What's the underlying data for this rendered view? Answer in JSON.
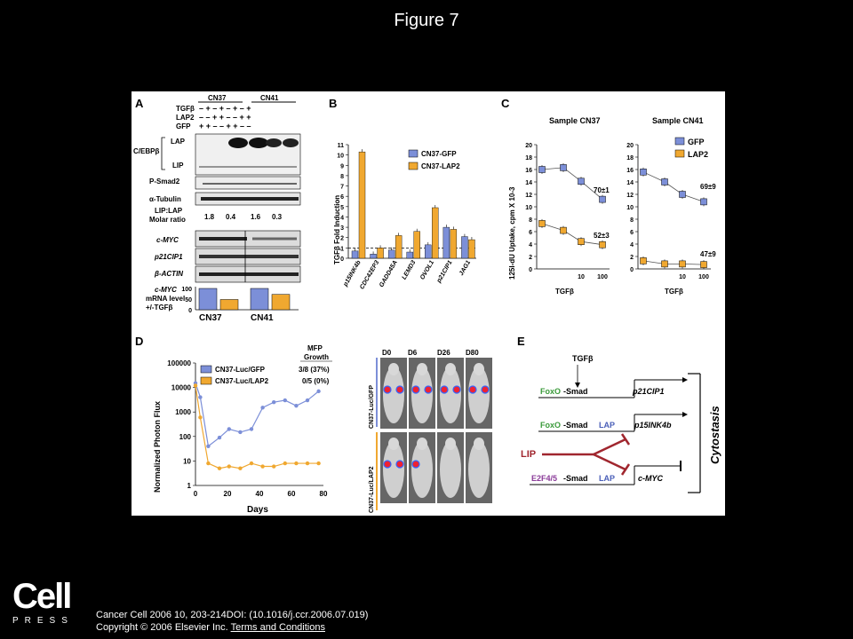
{
  "figure_title": "Figure 7",
  "panels": {
    "A": {
      "letter": "A",
      "groups": [
        "CN37",
        "CN41"
      ],
      "row_labels": [
        "TGFβ",
        "LAP2",
        "GFP"
      ],
      "tgf_signs": "– + – + – + – +",
      "lap2_signs": "– – + + – – + +",
      "gfp_signs": "+ + – – + + – –",
      "blot_labels": [
        "C/EBPβ",
        "LAP",
        "LIP",
        "P-Smad2",
        "α-Tubulin"
      ],
      "ratio_label_1": "LIP:LAP",
      "ratio_label_2": "Molar ratio",
      "ratios": [
        "1.8",
        "0.4",
        "1.6",
        "0.3"
      ],
      "rna_labels": [
        "c-MYC",
        "p21CIP1",
        "β-ACTIN"
      ],
      "bar_label_1": "c-MYC",
      "bar_label_2": "mRNA level",
      "bar_label_3": "+/-TGFβ",
      "bar_axis_ticks": [
        "100",
        "50",
        "0"
      ]
    },
    "B": {
      "letter": "B",
      "ylabel": "TGFβ Fold Induction",
      "legend": [
        "CN37-GFP",
        "CN37-LAP2"
      ]
    },
    "C": {
      "letter": "C",
      "ylabel": "125I-dU Uptake, cpm X 10-3",
      "left_title": "Sample CN37",
      "right_title": "Sample CN41",
      "xlabel": "TGFβ",
      "legend": [
        "GFP",
        "LAP2"
      ],
      "annotations": [
        "70±1",
        "52±3",
        "69±9",
        "47±9"
      ]
    },
    "D": {
      "letter": "D",
      "ylabel": "Normalized Photon Flux",
      "xlabel": "Days",
      "legend_header_1": "MFP",
      "legend_header_2": "Growth",
      "legend": [
        {
          "label": "CN37-Luc/GFP",
          "growth": "3/8 (37%)"
        },
        {
          "label": "CN37-Luc/LAP2",
          "growth": "0/5 (0%)"
        }
      ],
      "day_labels": [
        "D0",
        "D6",
        "D26",
        "D80"
      ],
      "row_labels": [
        "CN37-Luc/GFP",
        "CN37-Luc/LAP2"
      ]
    },
    "E": {
      "letter": "E",
      "tgf": "TGFβ",
      "foxo": "FoxO",
      "smad": "-Smad",
      "lap": "LAP",
      "lip": "LIP",
      "e2f": "E2F4/5",
      "targets": [
        "p21CIP1",
        "p15INK4b",
        "c-MYC"
      ],
      "outcome": "Cytostasis"
    }
  },
  "chart_data": [
    {
      "type": "bar",
      "panel": "A",
      "categories": [
        "CN37",
        "CN41"
      ],
      "series": [
        {
          "name": "GFP",
          "values": [
            100,
            100
          ]
        },
        {
          "name": "LAP2",
          "values": [
            48,
            72
          ]
        }
      ],
      "ylim": [
        0,
        100
      ]
    },
    {
      "type": "bar",
      "panel": "B",
      "categories": [
        "p15INK4b",
        "CDC42EP3",
        "GADD45A",
        "LEMD3",
        "OVOL1",
        "p21CIP1",
        "JAG1"
      ],
      "series": [
        {
          "name": "CN37-GFP",
          "values": [
            0.7,
            0.4,
            0.8,
            0.6,
            1.3,
            3.0,
            2.1
          ]
        },
        {
          "name": "CN37-LAP2",
          "values": [
            10.3,
            1.0,
            2.2,
            2.6,
            4.9,
            2.8,
            1.8
          ]
        }
      ],
      "ylim": [
        0,
        11
      ],
      "yticks": [
        0,
        1,
        2,
        3,
        4,
        5,
        6,
        7,
        8,
        9,
        10,
        11
      ],
      "reference_line": 1
    },
    {
      "type": "line",
      "panel": "C-CN37",
      "x": [
        0,
        3,
        10,
        100
      ],
      "series": [
        {
          "name": "GFP",
          "values": [
            16,
            16.3,
            14.1,
            11.2
          ]
        },
        {
          "name": "LAP2",
          "values": [
            7.3,
            6.2,
            4.4,
            3.9
          ]
        }
      ],
      "ylim": [
        0,
        20
      ],
      "yticks": [
        0,
        2,
        4,
        6,
        8,
        10,
        12,
        14,
        16,
        18,
        20
      ],
      "xticks": [
        "10",
        "100"
      ]
    },
    {
      "type": "line",
      "panel": "C-CN41",
      "x": [
        0,
        3,
        10,
        100
      ],
      "series": [
        {
          "name": "GFP",
          "values": [
            15.6,
            14,
            12,
            10.8
          ]
        },
        {
          "name": "LAP2",
          "values": [
            1.3,
            0.8,
            0.8,
            0.7
          ]
        }
      ],
      "ylim": [
        0,
        20
      ],
      "yticks": [
        0,
        2,
        4,
        6,
        8,
        10,
        12,
        14,
        16,
        18,
        20
      ],
      "xticks": [
        "10",
        "100"
      ]
    },
    {
      "type": "line",
      "panel": "D",
      "x_ticks": [
        0,
        20,
        40,
        60,
        80
      ],
      "y_ticks": [
        "1",
        "10",
        "100",
        "1000",
        "10000",
        "100000"
      ],
      "log_y": true,
      "series": [
        {
          "name": "CN37-Luc/GFP",
          "x": [
            0,
            3,
            8,
            15,
            21,
            28,
            35,
            42,
            49,
            56,
            63,
            70,
            77
          ],
          "values": [
            15000,
            4000,
            40,
            90,
            200,
            150,
            200,
            1500,
            2500,
            3000,
            1800,
            3000,
            7000
          ]
        },
        {
          "name": "CN37-Luc/LAP2",
          "x": [
            0,
            3,
            8,
            15,
            21,
            28,
            35,
            42,
            49,
            56,
            63,
            70,
            77
          ],
          "values": [
            12000,
            600,
            8,
            5,
            6,
            5,
            8,
            6,
            6,
            8,
            8,
            8,
            8
          ]
        }
      ],
      "xlim": [
        0,
        80
      ]
    }
  ],
  "citation": {
    "line1": "Cancer Cell 2006 10, 203-214DOI: (10.1016/j.ccr.2006.07.019)",
    "line2": "Copyright © 2006 Elsevier Inc.",
    "link": "Terms and Conditions"
  },
  "logo": {
    "main": "Cell",
    "sub": "PRESS"
  },
  "colors": {
    "gfp": "#7c8fd8",
    "lap2": "#f0a830",
    "background": "#000000",
    "panel": "#ffffff"
  }
}
